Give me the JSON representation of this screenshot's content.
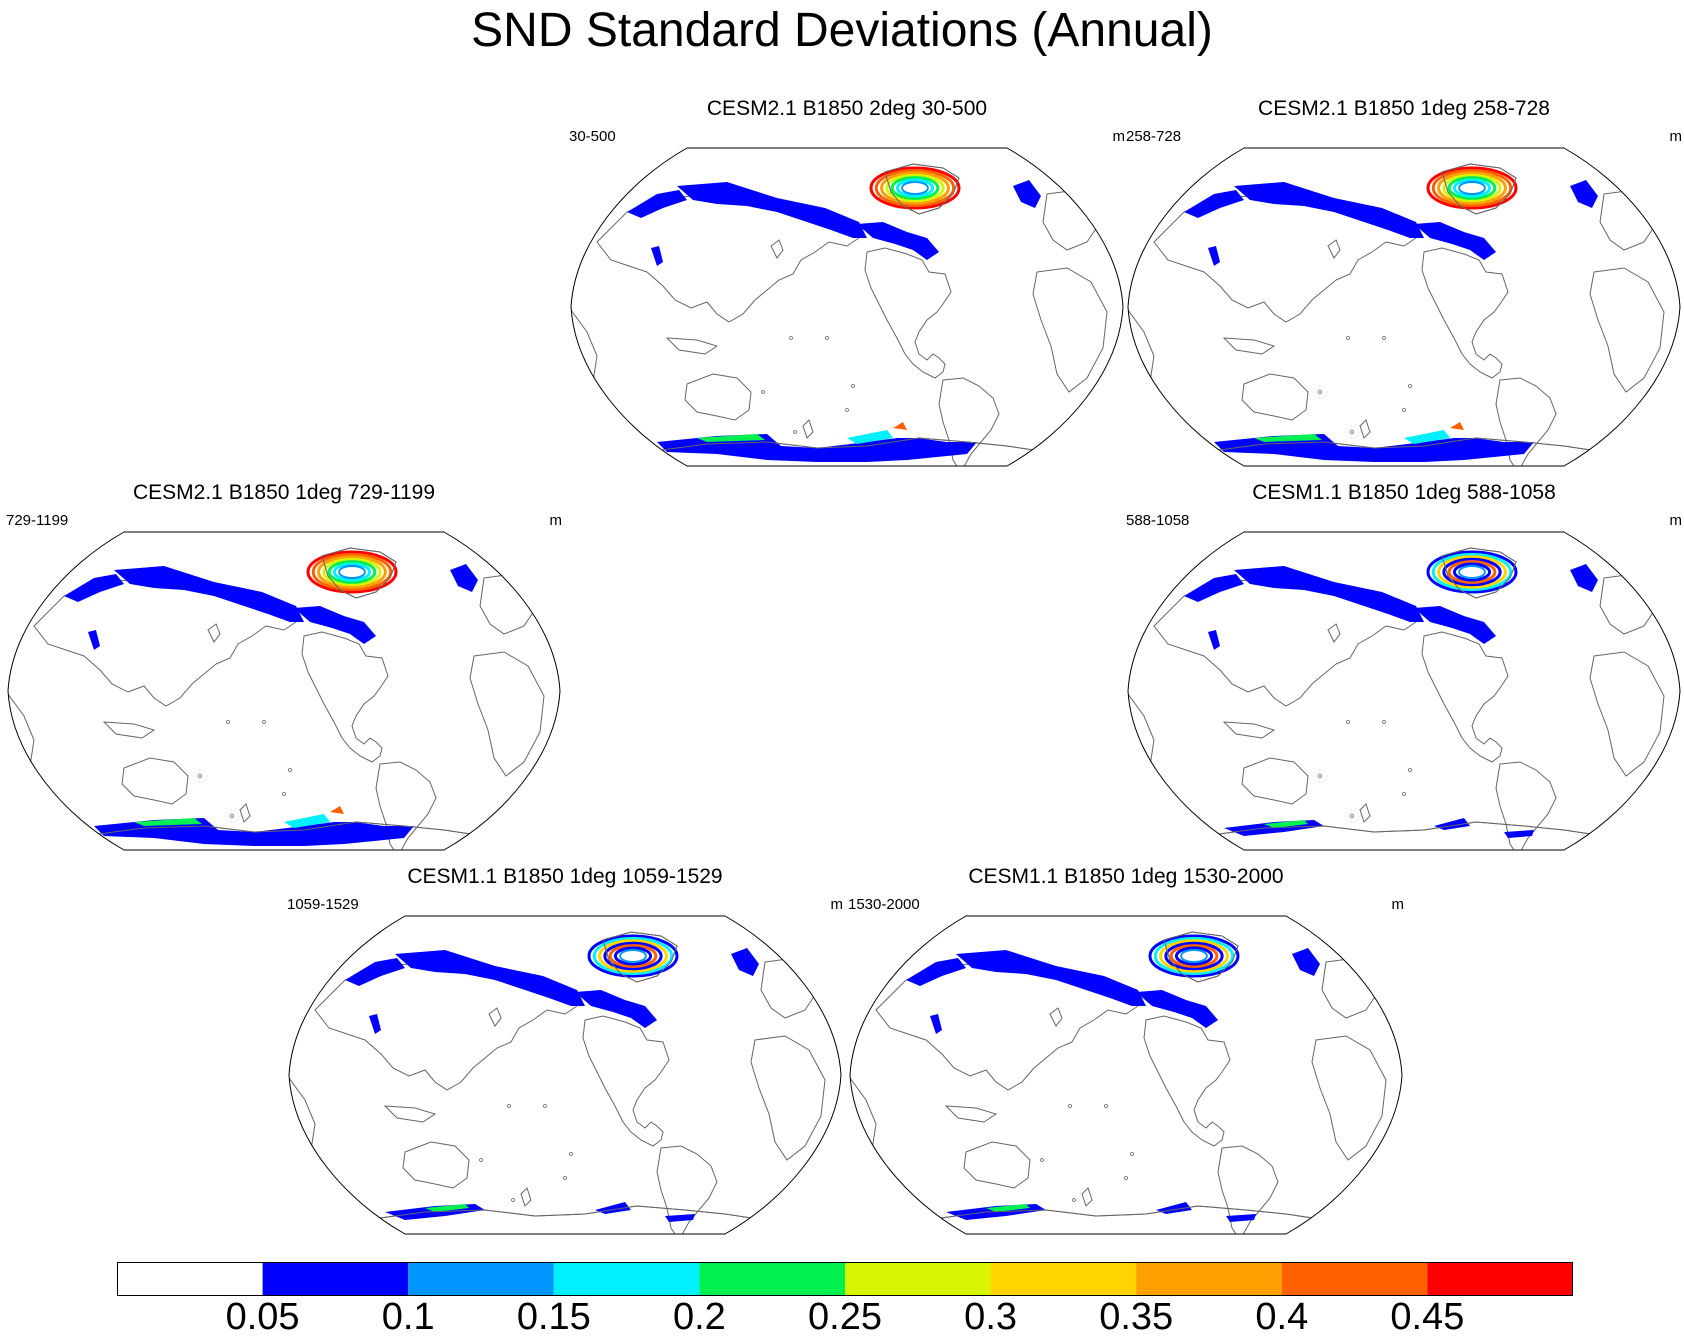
{
  "page": {
    "title": "SND Standard Deviations (Annual)"
  },
  "panels": [
    {
      "title": "CESM2.1 B1850 2deg 30-500",
      "left_label": "30-500",
      "right_label": "m",
      "antarctic_extent": "full",
      "greenland_intensity": "high"
    },
    {
      "title": "CESM2.1 B1850 1deg 258-728",
      "left_label": "258-728",
      "right_label": "m",
      "antarctic_extent": "full",
      "greenland_intensity": "high"
    },
    {
      "title": "CESM2.1 B1850 1deg 729-1199",
      "left_label": "729-1199",
      "right_label": "m",
      "antarctic_extent": "full",
      "greenland_intensity": "high"
    },
    {
      "title": "CESM1.1 B1850 1deg 588-1058",
      "left_label": "588-1058",
      "right_label": "m",
      "antarctic_extent": "partial",
      "greenland_intensity": "medium"
    },
    {
      "title": "CESM1.1 B1850 1deg 1059-1529",
      "left_label": "1059-1529",
      "right_label": "m",
      "antarctic_extent": "partial",
      "greenland_intensity": "medium"
    },
    {
      "title": "CESM1.1 B1850 1deg 1530-2000",
      "left_label": "1530-2000",
      "right_label": "m",
      "antarctic_extent": "partial",
      "greenland_intensity": "medium"
    }
  ],
  "colorbar": {
    "colors": [
      "#ffffff",
      "#0000ff",
      "#0095ff",
      "#00f0ff",
      "#00f050",
      "#d8f500",
      "#ffd400",
      "#ffa000",
      "#ff6000",
      "#ff0000"
    ],
    "labels": [
      "0.05",
      "0.1",
      "0.15",
      "0.2",
      "0.25",
      "0.3",
      "0.35",
      "0.4",
      "0.45"
    ]
  }
}
